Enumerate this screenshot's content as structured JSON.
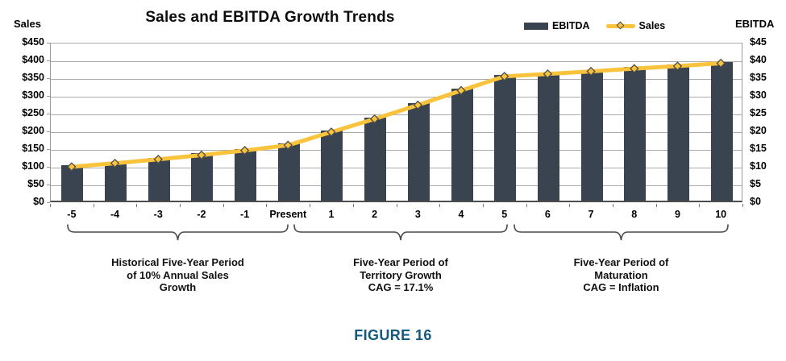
{
  "header": {
    "title": "Sales and EBITDA Growth Trends",
    "left_axis_corner_title": "Sales",
    "right_axis_corner_title": "EBITDA"
  },
  "legend": {
    "ebitda_label": "EBITDA",
    "sales_label": "Sales"
  },
  "caption": "FIGURE 16",
  "colors": {
    "bar": "#3A4450",
    "line": "#F9C33C",
    "marker_outline": "#4D4D4D",
    "gridline": "#ababab",
    "caption_blue": "#16597C"
  },
  "chart_data": {
    "type": "bar",
    "subtype": "combo bar+line, dual axis",
    "title": "Sales and EBITDA Growth Trends",
    "categories": [
      "-5",
      "-4",
      "-3",
      "-2",
      "-1",
      "Present",
      "1",
      "2",
      "3",
      "4",
      "5",
      "6",
      "7",
      "8",
      "9",
      "10"
    ],
    "series": [
      {
        "name": "EBITDA",
        "type": "bar",
        "axis": "right",
        "values": [
          10,
          11,
          12.1,
          13.3,
          14.6,
          16.1,
          19.8,
          23.5,
          27.4,
          31.5,
          35.5,
          36.2,
          36.9,
          37.7,
          38.4,
          39.2
        ]
      },
      {
        "name": "Sales",
        "type": "line",
        "axis": "left",
        "values": [
          100,
          110,
          121,
          133,
          146,
          161,
          198,
          235,
          274,
          315,
          355,
          362,
          369,
          377,
          384,
          392
        ]
      }
    ],
    "left_axis": {
      "title": "Sales",
      "min": 0,
      "max": 450,
      "step": 50,
      "tick_labels": [
        "$0",
        "$50",
        "$100",
        "$150",
        "$200",
        "$250",
        "$300",
        "$350",
        "$400",
        "$450"
      ]
    },
    "right_axis": {
      "title": "EBITDA",
      "min": 0,
      "max": 45,
      "step": 5,
      "tick_labels": [
        "$0",
        "$5",
        "$10",
        "$15",
        "$20",
        "$25",
        "$30",
        "$35",
        "$40",
        "$45"
      ]
    },
    "grid": "horizontal gridlines on",
    "legend_position": "top-right",
    "annotations": [
      {
        "from": "-5",
        "to": "Present",
        "lines": [
          "Historical Five-Year Period",
          "of 10% Annual Sales",
          "Growth"
        ]
      },
      {
        "from": "1",
        "to": "5",
        "lines": [
          "Five-Year Period of",
          "Territory Growth",
          "CAG = 17.1%"
        ]
      },
      {
        "from": "6",
        "to": "10",
        "lines": [
          "Five-Year Period of",
          "Maturation",
          "CAG = Inflation"
        ]
      }
    ]
  }
}
